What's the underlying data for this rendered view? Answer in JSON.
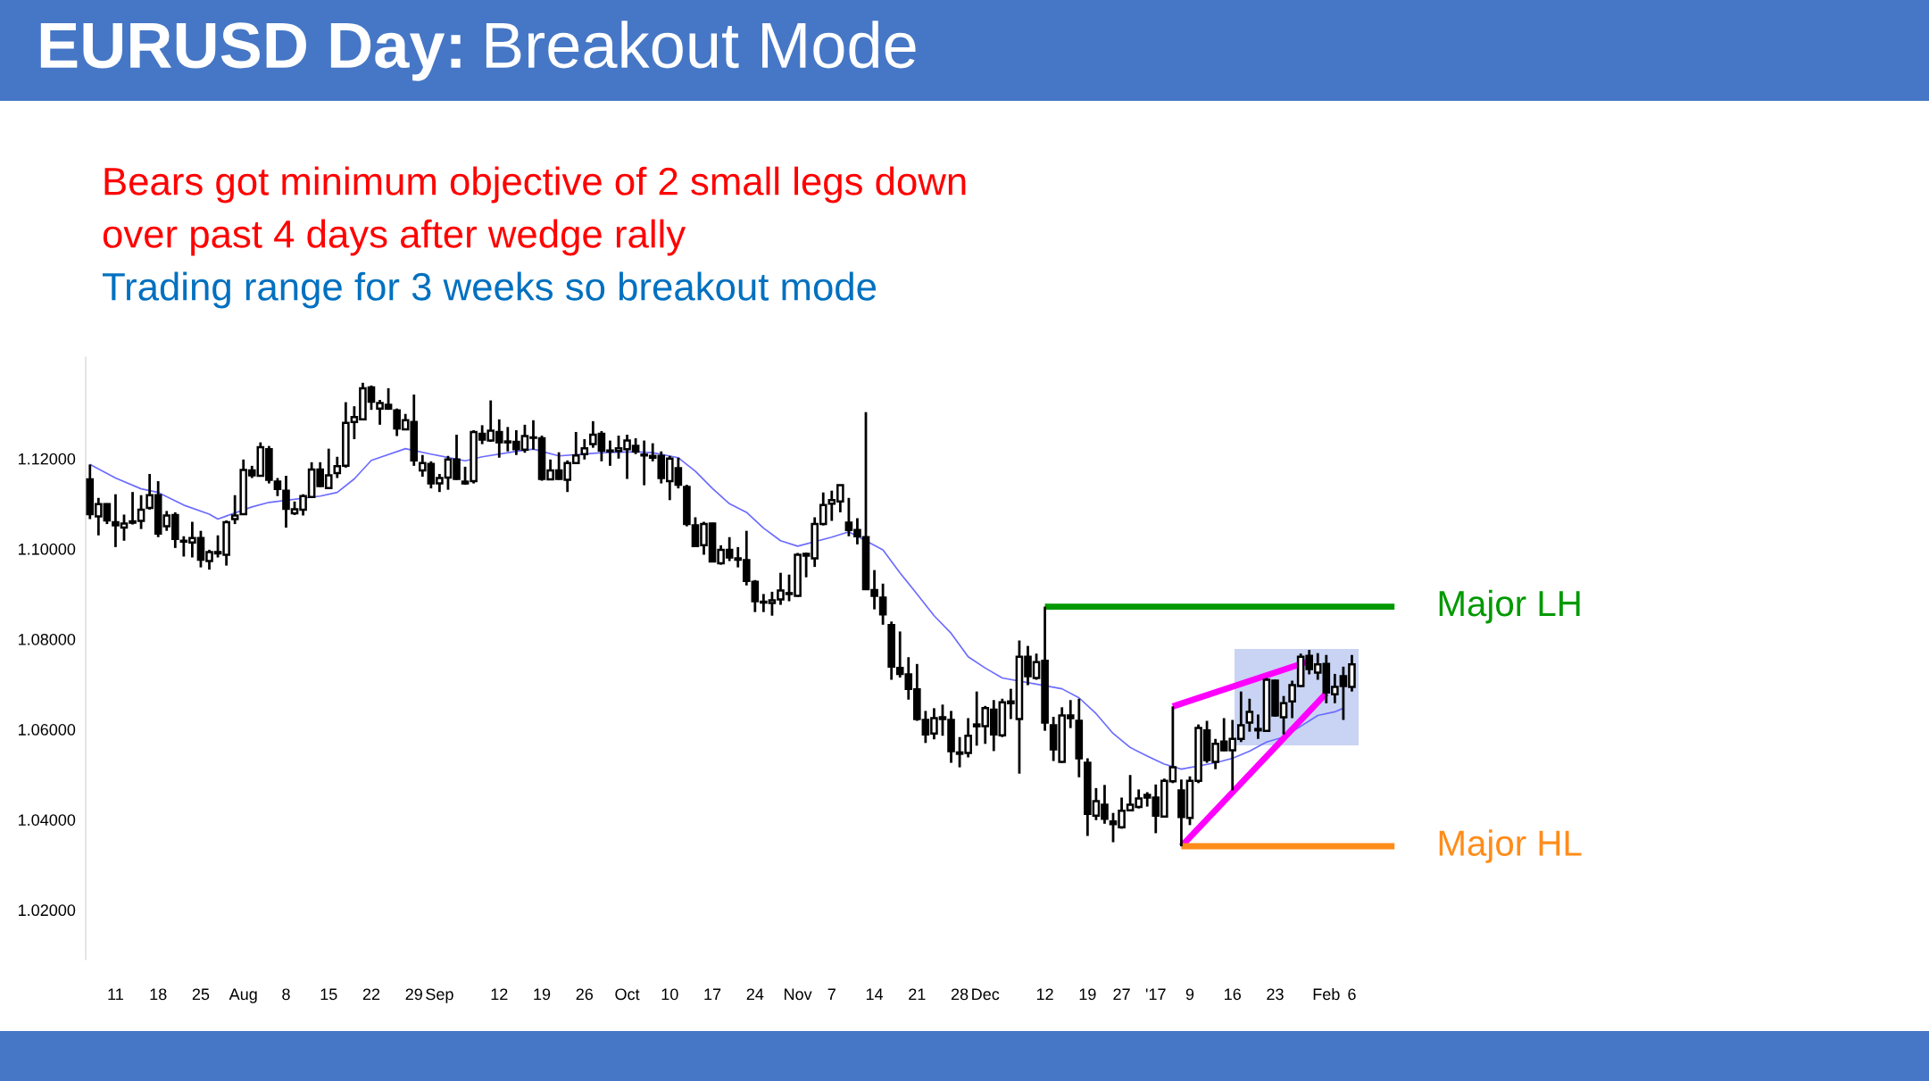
{
  "chart_data": {
    "type": "candlestick",
    "title": "EURUSD Day:",
    "subtitle": "Breakout Mode",
    "annotations": [
      "Bears got minimum objective of 2 small legs down",
      "over past 4 days after wedge rally",
      "Trading range for 3 weeks so breakout mode"
    ],
    "categories": [
      null,
      null,
      null,
      "11",
      null,
      null,
      null,
      null,
      "18",
      null,
      null,
      null,
      null,
      "25",
      null,
      null,
      null,
      null,
      "Aug",
      null,
      null,
      null,
      null,
      "8",
      null,
      null,
      null,
      null,
      "15",
      null,
      null,
      null,
      null,
      "22",
      null,
      null,
      null,
      null,
      "29",
      null,
      null,
      "Sep",
      null,
      null,
      null,
      null,
      null,
      null,
      "12",
      null,
      null,
      null,
      null,
      "19",
      null,
      null,
      null,
      null,
      "26",
      null,
      null,
      null,
      null,
      "Oct",
      null,
      null,
      null,
      null,
      "10",
      null,
      null,
      null,
      null,
      "17",
      null,
      null,
      null,
      null,
      "24",
      null,
      null,
      null,
      null,
      "Nov",
      null,
      null,
      null,
      "7",
      null,
      null,
      null,
      null,
      "14",
      null,
      null,
      null,
      null,
      "21",
      null,
      null,
      null,
      null,
      "28",
      null,
      null,
      "Dec",
      null,
      null,
      null,
      null,
      null,
      null,
      "12",
      null,
      null,
      null,
      null,
      "19",
      null,
      null,
      null,
      "27",
      null,
      null,
      null,
      "'17",
      null,
      null,
      null,
      "9",
      null,
      null,
      null,
      null,
      "16",
      null,
      null,
      null,
      null,
      "23",
      null,
      null,
      null,
      null,
      null,
      "Feb",
      null,
      null,
      "6",
      null,
      null,
      null,
      null,
      null
    ],
    "ohlc": [
      [
        1.1154,
        1.1187,
        1.1066,
        1.1077
      ],
      [
        1.1072,
        1.1113,
        1.103,
        1.1099
      ],
      [
        1.1099,
        1.1101,
        1.1055,
        1.1063
      ],
      [
        1.1059,
        1.1121,
        1.1004,
        1.1052
      ],
      [
        1.1047,
        1.1076,
        1.1018,
        1.1056
      ],
      [
        1.1058,
        1.1126,
        1.1054,
        1.1061
      ],
      [
        1.1062,
        1.1119,
        1.1044,
        1.1087
      ],
      [
        1.1091,
        1.1166,
        1.1087,
        1.1119
      ],
      [
        1.1119,
        1.115,
        1.1026,
        1.1034
      ],
      [
        1.105,
        1.1084,
        1.104,
        1.1074
      ],
      [
        1.1075,
        1.1081,
        1.1002,
        1.1022
      ],
      [
        1.1018,
        1.1028,
        1.0983,
        1.1016
      ],
      [
        1.1014,
        1.106,
        1.0981,
        1.1024
      ],
      [
        1.1024,
        1.104,
        1.0959,
        1.0976
      ],
      [
        1.0973,
        1.0998,
        1.0954,
        1.0993
      ],
      [
        1.0993,
        1.103,
        1.0981,
        1.099
      ],
      [
        1.0987,
        1.1063,
        1.0963,
        1.1059
      ],
      [
        1.1066,
        1.1119,
        1.1055,
        1.1074
      ],
      [
        1.1077,
        1.1198,
        1.1076,
        1.1175
      ],
      [
        1.1174,
        1.1184,
        1.1157,
        1.1163
      ],
      [
        1.1162,
        1.1236,
        1.116,
        1.1225
      ],
      [
        1.1221,
        1.1228,
        1.1145,
        1.1153
      ],
      [
        1.1149,
        1.1157,
        1.1117,
        1.1133
      ],
      [
        1.1129,
        1.1162,
        1.1047,
        1.1089
      ],
      [
        1.1079,
        1.1105,
        1.1075,
        1.1088
      ],
      [
        1.1087,
        1.1121,
        1.1074,
        1.1117
      ],
      [
        1.1115,
        1.1192,
        1.1113,
        1.1176
      ],
      [
        1.1176,
        1.1192,
        1.1137,
        1.1139
      ],
      [
        1.1135,
        1.1222,
        1.1133,
        1.1163
      ],
      [
        1.1168,
        1.1204,
        1.1157,
        1.1183
      ],
      [
        1.1184,
        1.1325,
        1.118,
        1.1279
      ],
      [
        1.1281,
        1.1316,
        1.1243,
        1.1292
      ],
      [
        1.1287,
        1.1368,
        1.1285,
        1.1356
      ],
      [
        1.1358,
        1.1362,
        1.1308,
        1.1326
      ],
      [
        1.1311,
        1.133,
        1.1275,
        1.1323
      ],
      [
        1.1319,
        1.1356,
        1.1308,
        1.1311
      ],
      [
        1.1307,
        1.1311,
        1.125,
        1.1267
      ],
      [
        1.1265,
        1.1299,
        1.1263,
        1.1285
      ],
      [
        1.1281,
        1.1342,
        1.1184,
        1.1196
      ],
      [
        1.1174,
        1.1208,
        1.116,
        1.119
      ],
      [
        1.1188,
        1.1194,
        1.1134,
        1.1145
      ],
      [
        1.1145,
        1.1166,
        1.1126,
        1.1157
      ],
      [
        1.1158,
        1.1206,
        1.1131,
        1.1198
      ],
      [
        1.1198,
        1.1253,
        1.1153,
        1.1155
      ],
      [
        1.1149,
        1.1182,
        1.1142,
        1.1145
      ],
      [
        1.115,
        1.1263,
        1.1145,
        1.1259
      ],
      [
        1.1255,
        1.1274,
        1.1232,
        1.1242
      ],
      [
        1.124,
        1.1329,
        1.1237,
        1.1262
      ],
      [
        1.1259,
        1.1287,
        1.1202,
        1.1236
      ],
      [
        1.1236,
        1.127,
        1.1216,
        1.1238
      ],
      [
        1.1237,
        1.1263,
        1.1208,
        1.1221
      ],
      [
        1.122,
        1.1275,
        1.1213,
        1.125
      ],
      [
        1.1247,
        1.1285,
        1.122,
        1.1246
      ],
      [
        1.1245,
        1.1251,
        1.1151,
        1.1155
      ],
      [
        1.1154,
        1.1198,
        1.1153,
        1.1174
      ],
      [
        1.1174,
        1.1214,
        1.1153,
        1.1155
      ],
      [
        1.1153,
        1.1196,
        1.1126,
        1.119
      ],
      [
        1.119,
        1.1259,
        1.1188,
        1.1207
      ],
      [
        1.121,
        1.1243,
        1.1198,
        1.1223
      ],
      [
        1.1232,
        1.1283,
        1.1224,
        1.1253
      ],
      [
        1.1255,
        1.1261,
        1.1194,
        1.1218
      ],
      [
        1.1218,
        1.124,
        1.1184,
        1.1216
      ],
      [
        1.1217,
        1.1251,
        1.12,
        1.1223
      ],
      [
        1.1221,
        1.1253,
        1.1155,
        1.124
      ],
      [
        1.1228,
        1.1245,
        1.121,
        1.1216
      ],
      [
        1.1209,
        1.124,
        1.1141,
        1.1207
      ],
      [
        1.1206,
        1.1234,
        1.1194,
        1.1202
      ],
      [
        1.1206,
        1.1216,
        1.1145,
        1.1157
      ],
      [
        1.115,
        1.1206,
        1.1108,
        1.12
      ],
      [
        1.1179,
        1.1202,
        1.1134,
        1.1142
      ],
      [
        1.1137,
        1.1142,
        1.105,
        1.1055
      ],
      [
        1.1052,
        1.107,
        1.1005,
        1.1006
      ],
      [
        1.1008,
        1.106,
        1.0987,
        1.1055
      ],
      [
        1.1056,
        1.1058,
        1.0971,
        1.0972
      ],
      [
        1.0968,
        1.1008,
        1.0965,
        1.0998
      ],
      [
        1.0998,
        1.1026,
        1.0973,
        1.0981
      ],
      [
        1.0979,
        1.1004,
        1.0959,
        1.0976
      ],
      [
        1.0975,
        1.104,
        1.0919,
        1.0929
      ],
      [
        1.0927,
        1.0931,
        1.086,
        1.0884
      ],
      [
        1.0883,
        1.09,
        1.086,
        1.0881
      ],
      [
        1.088,
        1.0905,
        1.0852,
        1.0886
      ],
      [
        1.0888,
        1.0947,
        1.0876,
        1.0908
      ],
      [
        1.09,
        1.0943,
        1.0884,
        1.0902
      ],
      [
        1.0896,
        1.0991,
        1.0894,
        1.0987
      ],
      [
        1.0985,
        1.0992,
        1.0937,
        1.0989
      ],
      [
        1.0979,
        1.107,
        1.096,
        1.1055
      ],
      [
        1.1055,
        1.1125,
        1.1052,
        1.1097
      ],
      [
        1.11,
        1.1129,
        1.1062,
        1.1108
      ],
      [
        1.1105,
        1.1142,
        1.1081,
        1.1141
      ],
      [
        1.1058,
        1.1113,
        1.1028,
        1.1042
      ],
      [
        1.1042,
        1.1068,
        1.101,
        1.1028
      ],
      [
        1.1026,
        1.1303,
        1.091,
        1.0911
      ],
      [
        1.0909,
        1.0953,
        1.0866,
        1.0896
      ],
      [
        1.0892,
        1.0923,
        1.0832,
        1.0855
      ],
      [
        1.0831,
        1.0839,
        1.071,
        1.0739
      ],
      [
        1.0736,
        1.0817,
        1.0715,
        1.0723
      ],
      [
        1.0722,
        1.076,
        1.0666,
        1.069
      ],
      [
        1.0689,
        1.0745,
        1.0619,
        1.0623
      ],
      [
        1.0621,
        1.0641,
        1.057,
        1.0589
      ],
      [
        1.0591,
        1.0647,
        1.0578,
        1.0625
      ],
      [
        1.0623,
        1.0655,
        1.0586,
        1.0627
      ],
      [
        1.0621,
        1.0641,
        1.0526,
        1.0552
      ],
      [
        1.0549,
        1.0583,
        1.0516,
        1.0546
      ],
      [
        1.0548,
        1.0625,
        1.0538,
        1.0586
      ],
      [
        1.0607,
        1.0684,
        1.0564,
        1.0611
      ],
      [
        1.0607,
        1.0652,
        1.0568,
        1.0647
      ],
      [
        1.0644,
        1.0665,
        1.0552,
        1.0589
      ],
      [
        1.0587,
        1.0668,
        1.0583,
        1.066
      ],
      [
        1.0658,
        1.069,
        1.0623,
        1.0662
      ],
      [
        1.0623,
        1.0797,
        1.0502,
        1.0761
      ],
      [
        1.0761,
        1.0785,
        1.0698,
        1.0718
      ],
      [
        1.0714,
        1.0768,
        1.071,
        1.0749
      ],
      [
        1.0752,
        1.0872,
        1.0597,
        1.0615
      ],
      [
        1.0609,
        1.0628,
        1.053,
        1.0556
      ],
      [
        1.0528,
        1.0649,
        1.0526,
        1.0631
      ],
      [
        1.0631,
        1.0665,
        1.0603,
        1.0625
      ],
      [
        1.0619,
        1.0668,
        1.0494,
        1.0536
      ],
      [
        1.0526,
        1.0536,
        1.0364,
        1.0413
      ],
      [
        1.0409,
        1.047,
        1.0399,
        1.0441
      ],
      [
        1.0433,
        1.0477,
        1.0391,
        1.0402
      ],
      [
        1.0396,
        1.0415,
        1.035,
        1.039
      ],
      [
        1.0383,
        1.0449,
        1.038,
        1.042
      ],
      [
        1.0421,
        1.0499,
        1.042,
        1.0433
      ],
      [
        1.0428,
        1.0467,
        1.0425,
        1.0447
      ],
      [
        1.0455,
        1.0461,
        1.0429,
        1.0449
      ],
      [
        1.0449,
        1.0478,
        1.037,
        1.0409
      ],
      [
        1.0407,
        1.0491,
        1.0406,
        1.0486
      ],
      [
        1.0485,
        1.0651,
        1.0481,
        1.0516
      ],
      [
        1.0465,
        1.0489,
        1.0341,
        1.0406
      ],
      [
        1.0404,
        1.0496,
        1.0388,
        1.0486
      ],
      [
        1.0486,
        1.0611,
        1.0481,
        1.0603
      ],
      [
        1.0598,
        1.0619,
        1.0526,
        1.0532
      ],
      [
        1.0528,
        1.0579,
        1.0512,
        1.0568
      ],
      [
        1.0573,
        1.0625,
        1.0552,
        1.0554
      ],
      [
        1.0554,
        1.0621,
        1.0465,
        1.0579
      ],
      [
        1.0579,
        1.0684,
        1.0572,
        1.0609
      ],
      [
        1.0615,
        1.0668,
        1.0595,
        1.0639
      ],
      [
        1.0601,
        1.0633,
        1.0579,
        1.0598
      ],
      [
        1.0597,
        1.0714,
        1.0595,
        1.071
      ],
      [
        1.0708,
        1.071,
        1.0628,
        1.0631
      ],
      [
        1.0627,
        1.0674,
        1.0589,
        1.0658
      ],
      [
        1.0662,
        1.0708,
        1.0625,
        1.0698
      ],
      [
        1.0696,
        1.0768,
        1.0694,
        1.0761
      ],
      [
        1.0763,
        1.0776,
        1.0722,
        1.0734
      ],
      [
        1.0726,
        1.0769,
        1.071,
        1.0744
      ],
      [
        1.0745,
        1.0765,
        1.0658,
        1.0682
      ],
      [
        1.0678,
        1.0723,
        1.0658,
        1.0694
      ],
      [
        1.0718,
        1.0739,
        1.0621,
        1.0696
      ],
      [
        1.0694,
        1.0765,
        1.0684,
        1.0744
      ],
      null,
      null,
      null,
      null,
      null
    ],
    "series": [
      {
        "type": "line",
        "color": "#6b6bff",
        "values": [
          1.1187,
          null,
          null,
          1.1157,
          null,
          null,
          1.1133,
          null,
          1.1125,
          null,
          null,
          1.1097,
          null,
          null,
          1.1077,
          1.1066,
          null,
          null,
          null,
          1.1093,
          null,
          1.1103,
          null,
          null,
          null,
          null,
          null,
          1.1117,
          null,
          1.1125,
          null,
          1.1155,
          null,
          1.1196,
          null,
          null,
          null,
          1.1222,
          null,
          null,
          1.121,
          null,
          null,
          null,
          1.1195,
          null,
          1.1204,
          null,
          null,
          null,
          1.1216,
          null,
          1.1221,
          null,
          null,
          1.1206,
          null,
          null,
          null,
          null,
          1.1213,
          null,
          null,
          null,
          1.1215,
          null,
          1.1213,
          null,
          null,
          1.1202,
          null,
          1.1172,
          null,
          1.1134,
          null,
          1.11,
          null,
          1.1081,
          null,
          1.1046,
          null,
          1.1018,
          null,
          1.1006,
          null,
          null,
          null,
          1.1026,
          null,
          1.1038,
          null,
          null,
          null,
          1.0998,
          null,
          1.0947,
          null,
          1.09,
          null,
          1.0852,
          null,
          1.0813,
          null,
          1.0761,
          null,
          1.0736,
          null,
          1.0714,
          null,
          null,
          null,
          null,
          null,
          null,
          1.069,
          null,
          1.067,
          null,
          1.0635,
          null,
          1.0591,
          null,
          1.056,
          null,
          1.0541,
          null,
          1.0523,
          null,
          1.0512,
          null,
          null,
          null,
          1.0526,
          null,
          1.0536,
          null,
          1.0552,
          null,
          1.0572,
          null,
          1.0583,
          null,
          1.0607,
          null,
          1.0631,
          null,
          1.0639,
          1.0647,
          null,
          null,
          null,
          null,
          null,
          null
        ]
      },
      {
        "type": "line",
        "color": "#ff00ff",
        "values": [
          null,
          null,
          null,
          null,
          null,
          null,
          null,
          null,
          null,
          null,
          null,
          null,
          null,
          null,
          null,
          null,
          null,
          null,
          null,
          null,
          null,
          null,
          null,
          null,
          null,
          null,
          null,
          null,
          null,
          null,
          null,
          null,
          null,
          null,
          null,
          null,
          null,
          null,
          null,
          null,
          null,
          null,
          null,
          null,
          null,
          null,
          null,
          null,
          null,
          null,
          null,
          null,
          null,
          null,
          null,
          null,
          null,
          null,
          null,
          null,
          null,
          null,
          null,
          null,
          null,
          null,
          null,
          null,
          null,
          null,
          null,
          null,
          null,
          null,
          null,
          null,
          null,
          null,
          null,
          null,
          null,
          null,
          null,
          null,
          null,
          null,
          null,
          null,
          null,
          null,
          null,
          null,
          null,
          null,
          null,
          null,
          null,
          null,
          null,
          null,
          null,
          null,
          null,
          null,
          null,
          null,
          null,
          null,
          null,
          null,
          null,
          null,
          null,
          null,
          null,
          null,
          null,
          null,
          null,
          null,
          null,
          null,
          null,
          null,
          null,
          null,
          null,
          1.0651,
          null,
          null,
          null,
          null,
          null,
          null,
          null,
          null,
          null,
          null,
          null,
          null,
          null,
          null,
          null,
          1.0751,
          null,
          null,
          null,
          null,
          null,
          null,
          null,
          null,
          null,
          null
        ]
      },
      {
        "type": "line",
        "color": "#ff00ff",
        "values": [
          null,
          null,
          null,
          null,
          null,
          null,
          null,
          null,
          null,
          null,
          null,
          null,
          null,
          null,
          null,
          null,
          null,
          null,
          null,
          null,
          null,
          null,
          null,
          null,
          null,
          null,
          null,
          null,
          null,
          null,
          null,
          null,
          null,
          null,
          null,
          null,
          null,
          null,
          null,
          null,
          null,
          null,
          null,
          null,
          null,
          null,
          null,
          null,
          null,
          null,
          null,
          null,
          null,
          null,
          null,
          null,
          null,
          null,
          null,
          null,
          null,
          null,
          null,
          null,
          null,
          null,
          null,
          null,
          null,
          null,
          null,
          null,
          null,
          null,
          null,
          null,
          null,
          null,
          null,
          null,
          null,
          null,
          null,
          null,
          null,
          null,
          null,
          null,
          null,
          null,
          null,
          null,
          null,
          null,
          null,
          null,
          null,
          null,
          null,
          null,
          null,
          null,
          null,
          null,
          null,
          null,
          null,
          null,
          null,
          null,
          null,
          null,
          null,
          null,
          null,
          null,
          null,
          null,
          null,
          null,
          null,
          null,
          null,
          null,
          null,
          null,
          null,
          null,
          1.0341,
          null,
          null,
          null,
          null,
          null,
          null,
          null,
          null,
          null,
          null,
          null,
          null,
          null,
          null,
          null,
          null,
          1.068,
          null,
          null,
          null,
          null,
          null,
          null,
          null,
          null
        ]
      },
      {
        "type": "line",
        "name": "Major LH",
        "color": "#009900",
        "values": [
          null,
          null,
          null,
          null,
          null,
          null,
          null,
          null,
          null,
          null,
          null,
          null,
          null,
          null,
          null,
          null,
          null,
          null,
          null,
          null,
          null,
          null,
          null,
          null,
          null,
          null,
          null,
          null,
          null,
          null,
          null,
          null,
          null,
          null,
          null,
          null,
          null,
          null,
          null,
          null,
          null,
          null,
          null,
          null,
          null,
          null,
          null,
          null,
          null,
          null,
          null,
          null,
          null,
          null,
          null,
          null,
          null,
          null,
          null,
          null,
          null,
          null,
          null,
          null,
          null,
          null,
          null,
          null,
          null,
          null,
          null,
          null,
          null,
          null,
          null,
          null,
          null,
          null,
          null,
          null,
          null,
          null,
          null,
          null,
          null,
          null,
          null,
          null,
          null,
          null,
          null,
          null,
          null,
          null,
          null,
          null,
          null,
          null,
          null,
          null,
          null,
          null,
          null,
          null,
          null,
          null,
          null,
          null,
          null,
          null,
          null,
          null,
          1.0872,
          null,
          null,
          null,
          null,
          null,
          null,
          null,
          null,
          null,
          null,
          null,
          null,
          null,
          null,
          null,
          null,
          null,
          null,
          null,
          null,
          null,
          null,
          null,
          null,
          null,
          null,
          null,
          null,
          null,
          null,
          null,
          null,
          null,
          null,
          null,
          null,
          null,
          null,
          null,
          null,
          1.0872
        ]
      },
      {
        "type": "line",
        "name": "Major HL",
        "color": "#ff8c1a",
        "values": [
          null,
          null,
          null,
          null,
          null,
          null,
          null,
          null,
          null,
          null,
          null,
          null,
          null,
          null,
          null,
          null,
          null,
          null,
          null,
          null,
          null,
          null,
          null,
          null,
          null,
          null,
          null,
          null,
          null,
          null,
          null,
          null,
          null,
          null,
          null,
          null,
          null,
          null,
          null,
          null,
          null,
          null,
          null,
          null,
          null,
          null,
          null,
          null,
          null,
          null,
          null,
          null,
          null,
          null,
          null,
          null,
          null,
          null,
          null,
          null,
          null,
          null,
          null,
          null,
          null,
          null,
          null,
          null,
          null,
          null,
          null,
          null,
          null,
          null,
          null,
          null,
          null,
          null,
          null,
          null,
          null,
          null,
          null,
          null,
          null,
          null,
          null,
          null,
          null,
          null,
          null,
          null,
          null,
          null,
          null,
          null,
          null,
          null,
          null,
          null,
          null,
          null,
          null,
          null,
          null,
          null,
          null,
          null,
          null,
          null,
          null,
          null,
          null,
          null,
          null,
          null,
          null,
          null,
          null,
          null,
          null,
          null,
          null,
          null,
          null,
          null,
          null,
          null,
          1.0341,
          null,
          null,
          null,
          null,
          null,
          null,
          null,
          null,
          null,
          null,
          null,
          null,
          null,
          null,
          null,
          null,
          null,
          null,
          null,
          null,
          null,
          null,
          null,
          null,
          1.0341
        ]
      }
    ],
    "ylim": [
      1.009,
      1.1425
    ],
    "yticks": [
      {
        "value": 1.02,
        "label": "1.02000"
      },
      {
        "value": 1.04,
        "label": "1.04000"
      },
      {
        "value": 1.06,
        "label": "1.06000"
      },
      {
        "value": 1.08,
        "label": "1.08000"
      },
      {
        "value": 1.1,
        "label": "1.10000"
      },
      {
        "value": 1.12,
        "label": "1.12000"
      }
    ],
    "grid": false
  }
}
